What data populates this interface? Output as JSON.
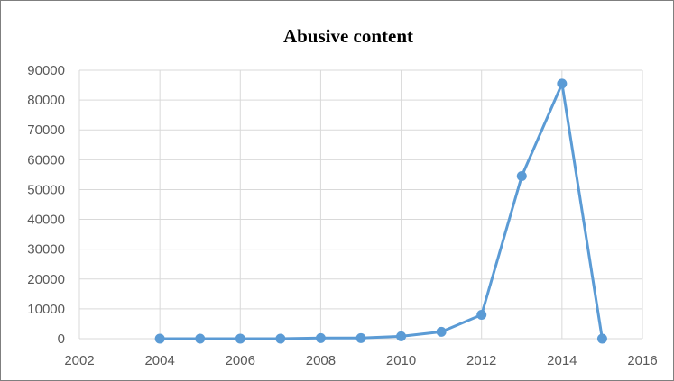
{
  "chart_data": {
    "type": "scatter",
    "title": "Abusive content",
    "xlabel": "",
    "ylabel": "",
    "xlim": [
      2002,
      2016
    ],
    "ylim": [
      0,
      90000
    ],
    "x_ticks": [
      2002,
      2004,
      2006,
      2008,
      2010,
      2012,
      2014,
      2016
    ],
    "y_ticks": [
      0,
      10000,
      20000,
      30000,
      40000,
      50000,
      60000,
      70000,
      80000,
      90000
    ],
    "grid": true,
    "legend": "none",
    "series": [
      {
        "color": "#5b9bd5",
        "mode": "lines+markers",
        "x": [
          2004,
          2005,
          2006,
          2007,
          2008,
          2009,
          2010,
          2011,
          2012,
          2013,
          2014,
          2015
        ],
        "y": [
          0,
          0,
          0,
          0,
          200,
          200,
          800,
          2300,
          8000,
          54500,
          85500,
          0
        ]
      }
    ]
  }
}
